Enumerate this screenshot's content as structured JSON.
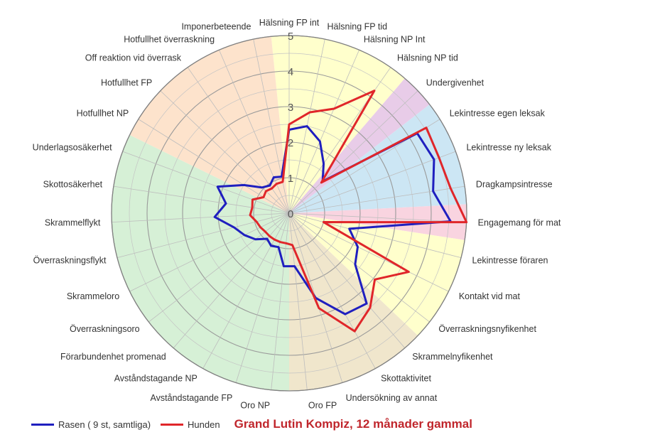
{
  "chart_data": {
    "type": "radar",
    "categories": [
      "Hälsning FP int",
      "Hälsning FP tid",
      "Hälsning NP Int",
      "Hälsning NP tid",
      "Undergivenhet",
      "Lekintresse egen leksak",
      "Lekintresse ny leksak",
      "Dragkampsintresse",
      "Engagemang för mat",
      "Lekintresse föraren",
      "Kontakt vid mat",
      "Överraskningsnyfikenhet",
      "Skrammelnyfikenhet",
      "Skottaktivitet",
      "Undersökning av annat",
      "Oro FP",
      "Oro NP",
      "Avståndstagande FP",
      "Avståndstagande NP",
      "Förarbundenhet promenad",
      "Överraskningsoro",
      "Skrammeloro",
      "Överraskningsflykt",
      "Skrammelflykt",
      "Skottosäkerhet",
      "Underlagsosäkerhet",
      "Hotfullhet NP",
      "Hotfullhet FP",
      "Off reaktion vid överrask",
      "Hotfullhet överraskning",
      "Imponerbeteende"
    ],
    "rlim": [
      0,
      5
    ],
    "rticks": [
      0,
      1,
      2,
      3,
      4,
      5
    ],
    "series": [
      {
        "name": "Rasen ( 9 st, samtliga)",
        "color": "#1f1fbf",
        "values": [
          2.35,
          2.5,
          2.2,
          1.7,
          1.3,
          4.25,
          4.35,
          4.1,
          4.55,
          1.75,
          2.15,
          2.35,
          3.35,
          3.25,
          2.5,
          1.5,
          1.5,
          1.0,
          1.05,
          0.95,
          1.2,
          1.4,
          1.6,
          2.1,
          1.8,
          2.15,
          1.5,
          1.05,
          0.95,
          1.1,
          1.05
        ]
      },
      {
        "name": "Hunden",
        "color": "#e0262a",
        "values": [
          2.5,
          2.9,
          3.2,
          4.2,
          1.25,
          4.55,
          4.5,
          4.6,
          5.0,
          1.0,
          3.75,
          3.05,
          3.5,
          3.8,
          2.8,
          0.9,
          0.85,
          0.85,
          0.85,
          0.85,
          0.85,
          0.9,
          0.95,
          1.1,
          1.05,
          1.1,
          0.85,
          0.9,
          0.85,
          0.9,
          0.9
        ]
      }
    ],
    "sectors": [
      {
        "from": 0,
        "to": 3,
        "color": "#ffffcc"
      },
      {
        "from": 4,
        "to": 4,
        "color": "#e8cce8"
      },
      {
        "from": 5,
        "to": 7,
        "color": "#cce6f4"
      },
      {
        "from": 8,
        "to": 8,
        "color": "#f9d4e0"
      },
      {
        "from": 9,
        "to": 11,
        "color": "#ffffcc"
      },
      {
        "from": 12,
        "to": 15,
        "color": "#f0e6cc"
      },
      {
        "from": 16,
        "to": 25,
        "color": "#d6f0d6"
      },
      {
        "from": 26,
        "to": 30,
        "color": "#fde3cc"
      }
    ],
    "grid": true,
    "legend_position": "bottom-left"
  },
  "legend": {
    "breed_label": "Rasen ( 9 st, samtliga)",
    "dog_label": "Hunden",
    "dog_name": "Grand Lutin Kompiz, 12 månader gammal"
  }
}
